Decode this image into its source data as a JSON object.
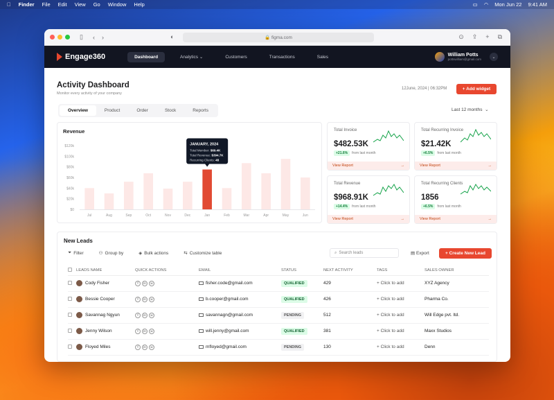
{
  "menubar": {
    "items": [
      "Finder",
      "File",
      "Edit",
      "View",
      "Go",
      "Window",
      "Help"
    ],
    "date": "Mon Jun 22",
    "time": "9:41 AM"
  },
  "browser": {
    "url": "figma.com"
  },
  "nav": {
    "brand": "Engage360",
    "items": [
      "Dashboard",
      "Analytics",
      "Customers",
      "Transactions",
      "Sales"
    ],
    "user_name": "William Potts",
    "user_email": "pottswilliam@gmail.com"
  },
  "page": {
    "title": "Activity Dashboard",
    "subtitle": "Monitor every activity of your company",
    "datetime": "12June, 2024 | 06:32PM",
    "add_widget": "+ Add widget",
    "period": "Last 12 months"
  },
  "tabs": [
    "Overview",
    "Product",
    "Order",
    "Stock",
    "Reports"
  ],
  "revenue": {
    "title": "Revenue"
  },
  "chart_data": {
    "type": "bar",
    "title": "Revenue",
    "categories": [
      "Jul",
      "Aug",
      "Sep",
      "Oct",
      "Nov",
      "Dec",
      "Jan",
      "Feb",
      "Mar",
      "Apr",
      "May",
      "Jun"
    ],
    "values": [
      40,
      30,
      52,
      68,
      39,
      52,
      75,
      40,
      87,
      68,
      95,
      60
    ],
    "yticks": [
      "$120k",
      "$100k",
      "$80k",
      "$60k",
      "$40k",
      "$20k",
      "$0"
    ],
    "ylim": [
      0,
      120
    ],
    "highlight": "Jan",
    "tooltip": {
      "title": "JANUARY, 2024",
      "rows": [
        {
          "label": "Total Member:",
          "value": "$69.4K"
        },
        {
          "label": "Total Revenue:",
          "value": "$394.7K"
        },
        {
          "label": "Recurring Clients:",
          "value": "48"
        }
      ]
    },
    "colors": {
      "bar": "#fde8e6",
      "highlight": "#e14a33"
    }
  },
  "kpis": [
    {
      "label": "Total Invoice",
      "value": "$482.53K",
      "change": "+21.6%",
      "note": "from last month",
      "footer": "View Report"
    },
    {
      "label": "Total Recurring Invoice",
      "value": "$21.42K",
      "change": "+6.5%",
      "note": "from last month",
      "footer": "View Report"
    },
    {
      "label": "Total Revenue",
      "value": "$968.91K",
      "change": "+14.4%",
      "note": "from last month",
      "footer": "View Report"
    },
    {
      "label": "Total Recurring Clients",
      "value": "1856",
      "change": "+6.5%",
      "note": "from last month",
      "footer": "View Report"
    }
  ],
  "leads": {
    "title": "New Leads",
    "toolbar": [
      "Filter",
      "Group by",
      "Bulk actions",
      "Customize table"
    ],
    "search_placeholder": "Search leads",
    "export": "Export",
    "new_lead": "+ Create New Lead",
    "columns": [
      "LEADS NAME",
      "QUICK ACTIONS",
      "EMAIL",
      "STATUS",
      "NEXT ACTIVITY",
      "TAGS",
      "SALES OWNER"
    ],
    "rows": [
      {
        "name": "Cody Fisher",
        "email": "fisher.code@gmail.com",
        "status": "QUALIFIED",
        "next": "429",
        "tag": "+ Click to add",
        "owner": "XYZ Agency"
      },
      {
        "name": "Bessie Cooper",
        "email": "b.cooper@gmail.com",
        "status": "QUALIFIED",
        "next": "426",
        "tag": "+ Click to add",
        "owner": "Pharma Co."
      },
      {
        "name": "Savannag Ngyun",
        "email": "savannagn@gmail.com",
        "status": "PENDING",
        "next": "512",
        "tag": "+ Click to add",
        "owner": "Will Edge pvt. ltd."
      },
      {
        "name": "Jenny Wilson",
        "email": "will.jenny@gmail.com",
        "status": "QUALIFIED",
        "next": "381",
        "tag": "+ Click to add",
        "owner": "Maxx Studios"
      },
      {
        "name": "Floyed Miles",
        "email": "mfloyed@gmail.com",
        "status": "PENDING",
        "next": "130",
        "tag": "+ Click to add",
        "owner": "Denn"
      }
    ]
  }
}
